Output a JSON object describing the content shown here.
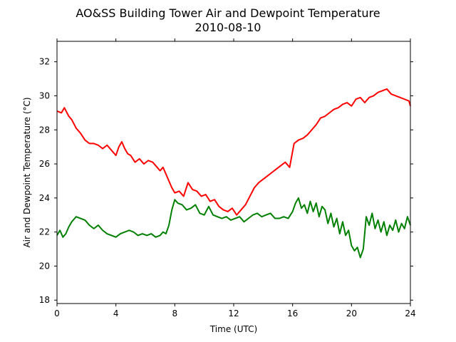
{
  "chart_data": {
    "type": "line",
    "title": "AO&SS Building Tower Air and Dewpoint Temperature",
    "subtitle": "2010-08-10",
    "xlabel": "Time (UTC)",
    "ylabel": "Air and Dewpoint Temperature (°C)",
    "xlim": [
      0,
      24
    ],
    "ylim": [
      17.8,
      33.2
    ],
    "xticks": [
      0,
      4,
      8,
      12,
      16,
      20,
      24
    ],
    "yticks": [
      18,
      20,
      22,
      24,
      26,
      28,
      30,
      32
    ],
    "xtick_labels": [
      "0",
      "4",
      "8",
      "12",
      "16",
      "20",
      "24"
    ],
    "ytick_labels": [
      "18",
      "20",
      "22",
      "24",
      "26",
      "28",
      "30",
      "32"
    ],
    "grid": false,
    "series": [
      {
        "color": "#ff0000",
        "x": [
          0,
          0.3,
          0.5,
          0.8,
          1.0,
          1.3,
          1.6,
          1.9,
          2.2,
          2.5,
          2.8,
          3.1,
          3.4,
          3.7,
          4.0,
          4.2,
          4.4,
          4.6,
          4.8,
          5.0,
          5.3,
          5.6,
          5.9,
          6.2,
          6.5,
          6.8,
          7.0,
          7.2,
          7.4,
          7.6,
          7.8,
          8.0,
          8.3,
          8.6,
          8.9,
          9.2,
          9.5,
          9.8,
          10.1,
          10.4,
          10.7,
          11.0,
          11.3,
          11.6,
          11.9,
          12.2,
          12.5,
          12.8,
          13.1,
          13.4,
          13.7,
          14.0,
          14.3,
          14.6,
          14.9,
          15.2,
          15.5,
          15.8,
          16.1,
          16.4,
          16.7,
          17.0,
          17.3,
          17.6,
          17.9,
          18.2,
          18.5,
          18.8,
          19.1,
          19.4,
          19.7,
          20.0,
          20.3,
          20.6,
          20.9,
          21.2,
          21.5,
          21.8,
          22.1,
          22.4,
          22.7,
          23.0,
          23.3,
          23.6,
          23.9,
          24.0
        ],
        "y": [
          29.1,
          29.0,
          29.3,
          28.8,
          28.6,
          28.1,
          27.8,
          27.4,
          27.2,
          27.2,
          27.1,
          26.9,
          27.1,
          26.8,
          26.5,
          27.0,
          27.3,
          26.9,
          26.6,
          26.5,
          26.1,
          26.3,
          26.0,
          26.2,
          26.1,
          25.8,
          25.6,
          25.8,
          25.4,
          25.0,
          24.6,
          24.3,
          24.4,
          24.1,
          24.9,
          24.5,
          24.4,
          24.1,
          24.2,
          23.8,
          23.9,
          23.5,
          23.3,
          23.2,
          23.4,
          23.0,
          23.3,
          23.6,
          24.1,
          24.6,
          24.9,
          25.1,
          25.3,
          25.5,
          25.7,
          25.9,
          26.1,
          25.8,
          27.2,
          27.4,
          27.5,
          27.7,
          28.0,
          28.3,
          28.7,
          28.8,
          29.0,
          29.2,
          29.3,
          29.5,
          29.6,
          29.4,
          29.8,
          29.9,
          29.6,
          29.9,
          30.0,
          30.2,
          30.3,
          30.4,
          30.1,
          30.0,
          29.9,
          29.8,
          29.7,
          29.4
        ]
      },
      {
        "color": "#008000",
        "x": [
          0,
          0.2,
          0.4,
          0.6,
          0.8,
          1.0,
          1.3,
          1.6,
          1.9,
          2.2,
          2.5,
          2.8,
          3.1,
          3.4,
          3.7,
          4.0,
          4.3,
          4.6,
          4.9,
          5.2,
          5.5,
          5.8,
          6.1,
          6.4,
          6.7,
          7.0,
          7.2,
          7.4,
          7.6,
          7.8,
          8.0,
          8.2,
          8.5,
          8.8,
          9.1,
          9.4,
          9.7,
          10.0,
          10.3,
          10.6,
          10.9,
          11.2,
          11.5,
          11.8,
          12.1,
          12.4,
          12.7,
          13.0,
          13.3,
          13.6,
          13.9,
          14.2,
          14.5,
          14.8,
          15.1,
          15.4,
          15.7,
          16.0,
          16.2,
          16.4,
          16.6,
          16.8,
          17.0,
          17.2,
          17.4,
          17.6,
          17.8,
          18.0,
          18.2,
          18.4,
          18.6,
          18.8,
          19.0,
          19.2,
          19.4,
          19.6,
          19.8,
          20.0,
          20.2,
          20.4,
          20.6,
          20.8,
          21.0,
          21.2,
          21.4,
          21.6,
          21.8,
          22.0,
          22.2,
          22.4,
          22.6,
          22.8,
          23.0,
          23.2,
          23.4,
          23.6,
          23.8,
          24.0
        ],
        "y": [
          21.8,
          22.1,
          21.7,
          21.9,
          22.3,
          22.6,
          22.9,
          22.8,
          22.7,
          22.4,
          22.2,
          22.4,
          22.1,
          21.9,
          21.8,
          21.7,
          21.9,
          22.0,
          22.1,
          22.0,
          21.8,
          21.9,
          21.8,
          21.9,
          21.7,
          21.8,
          22.0,
          21.9,
          22.4,
          23.3,
          23.9,
          23.7,
          23.6,
          23.3,
          23.4,
          23.6,
          23.1,
          23.0,
          23.5,
          23.0,
          22.9,
          22.8,
          22.9,
          22.7,
          22.8,
          22.9,
          22.6,
          22.8,
          23.0,
          23.1,
          22.9,
          23.0,
          23.1,
          22.8,
          22.8,
          22.9,
          22.8,
          23.2,
          23.7,
          24.0,
          23.4,
          23.6,
          23.1,
          23.8,
          23.2,
          23.7,
          22.9,
          23.5,
          23.3,
          22.5,
          23.1,
          22.3,
          22.8,
          21.9,
          22.6,
          21.8,
          22.1,
          21.2,
          20.9,
          21.1,
          20.5,
          21.0,
          22.9,
          22.4,
          23.1,
          22.2,
          22.7,
          22.0,
          22.6,
          21.8,
          22.4,
          22.1,
          22.7,
          22.0,
          22.5,
          22.2,
          22.9,
          22.4
        ]
      }
    ]
  }
}
